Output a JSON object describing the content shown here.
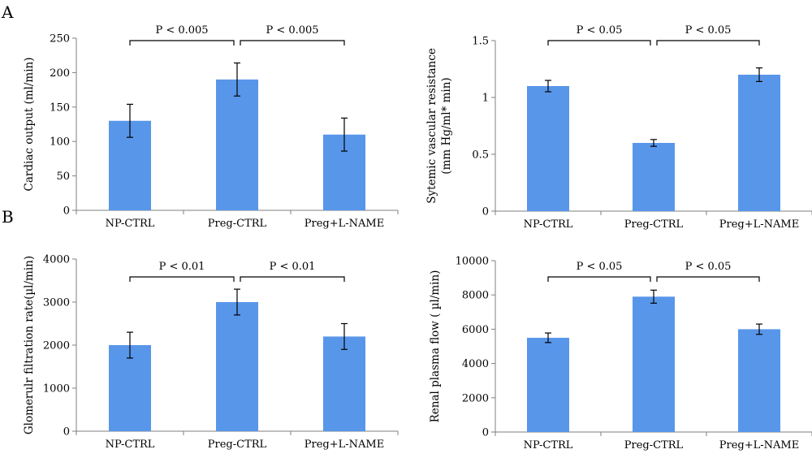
{
  "panel_labels": {
    "a": "A",
    "b": "B"
  },
  "chart_data": [
    {
      "type": "bar",
      "categories": [
        "NP-CTRL",
        "Preg-CTRL",
        "Preg+L-NAME"
      ],
      "values": [
        130,
        190,
        110
      ],
      "errors": [
        24,
        24,
        24
      ],
      "ylabel_lines": [
        "Cardiac output (ml/min)"
      ],
      "ylim": [
        0,
        250
      ],
      "yticks": [
        0,
        50,
        100,
        150,
        200,
        250
      ],
      "ytick_labels": [
        "0",
        "50",
        "100",
        "150",
        "200",
        "250"
      ],
      "significance": [
        "P < 0.005",
        "P < 0.005"
      ]
    },
    {
      "type": "bar",
      "categories": [
        "NP-CTRL",
        "Preg-CTRL",
        "Preg+L-NAME"
      ],
      "values": [
        1.1,
        0.6,
        1.2
      ],
      "errors": [
        0.05,
        0.03,
        0.06
      ],
      "ylabel_lines": [
        "Sytemic vascular resistance",
        "(mm Hg/ml* min)"
      ],
      "ylim": [
        0,
        1.5
      ],
      "yticks": [
        0,
        0.5,
        1,
        1.5
      ],
      "ytick_labels": [
        "0",
        "0.5",
        "1",
        "1.5"
      ],
      "significance": [
        "P < 0.05",
        "P < 0.05"
      ]
    },
    {
      "type": "bar",
      "categories": [
        "NP-CTRL",
        "Preg-CTRL",
        "Preg+L-NAME"
      ],
      "values": [
        2000,
        3000,
        2200
      ],
      "errors": [
        300,
        300,
        300
      ],
      "ylabel_lines": [
        "Glomerulr filtration rate(µl/min)"
      ],
      "ylim": [
        0,
        4000
      ],
      "yticks": [
        0,
        1000,
        2000,
        3000,
        4000
      ],
      "ytick_labels": [
        "0",
        "1000",
        "2000",
        "3000",
        "4000"
      ],
      "significance": [
        "P < 0.01",
        "P < 0.01"
      ]
    },
    {
      "type": "bar",
      "categories": [
        "NP-CTRL",
        "Preg-CTRL",
        "Preg+L-NAME"
      ],
      "values": [
        5500,
        7900,
        6000
      ],
      "errors": [
        280,
        380,
        300
      ],
      "ylabel_lines": [
        "Renal plasma flow ( µl/min)"
      ],
      "ylim": [
        0,
        10000
      ],
      "yticks": [
        0,
        2000,
        4000,
        6000,
        8000,
        10000
      ],
      "ytick_labels": [
        "0",
        "2000",
        "4000",
        "6000",
        "8000",
        "10000"
      ],
      "significance": [
        "P < 0.05",
        "P < 0.05"
      ]
    }
  ]
}
